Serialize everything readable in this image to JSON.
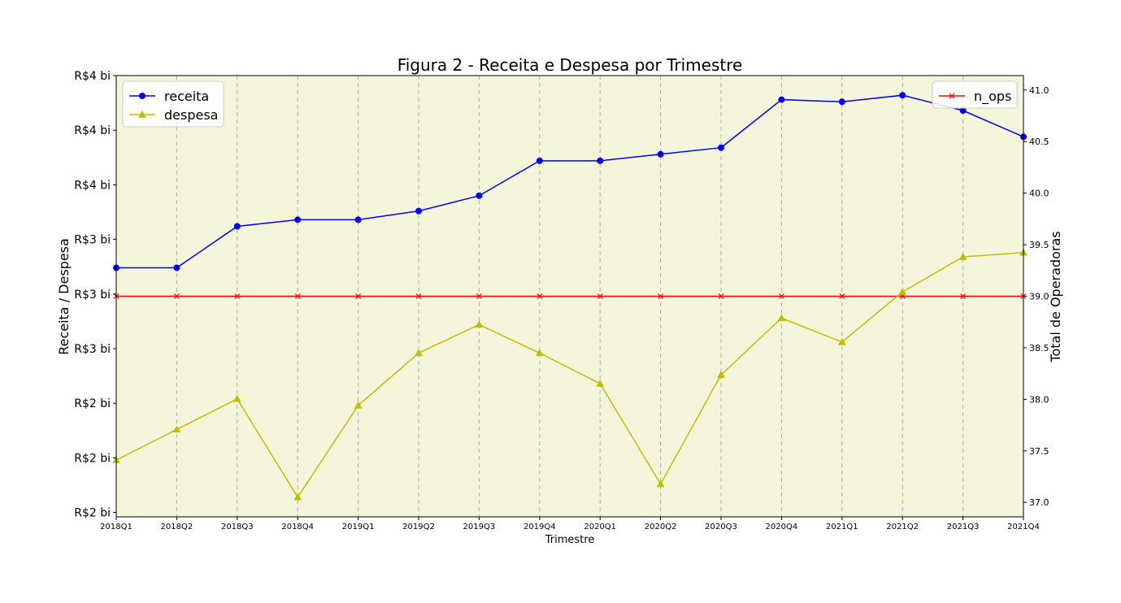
{
  "chart_data": {
    "type": "line",
    "title": "Figura 2 - Receita e Despesa por Trimestre",
    "xlabel": "Trimestre",
    "ylabel": "Receita / Despesa",
    "y2label": "Total de Operadoras",
    "categories": [
      "2018Q1",
      "2018Q2",
      "2018Q3",
      "2018Q4",
      "2019Q1",
      "2019Q2",
      "2019Q3",
      "2019Q4",
      "2020Q1",
      "2020Q2",
      "2020Q3",
      "2020Q4",
      "2021Q1",
      "2021Q2",
      "2021Q3",
      "2021Q4"
    ],
    "y_tick_labels": [
      "R$2 bi",
      "R$2 bi",
      "R$2 bi",
      "R$3 bi",
      "R$3 bi",
      "R$3 bi",
      "R$4 bi",
      "R$4 bi",
      "R$4 bi"
    ],
    "y_ticks": [
      2.0,
      2.25,
      2.5,
      2.75,
      3.0,
      3.25,
      3.5,
      3.75,
      4.0
    ],
    "ylim": [
      1.98,
      4.0
    ],
    "y2_ticks": [
      37.0,
      37.5,
      38.0,
      38.5,
      39.0,
      39.5,
      40.0,
      40.5,
      41.0
    ],
    "y2_tick_labels": [
      "37.0",
      "37.5",
      "38.0",
      "38.5",
      "39.0",
      "39.5",
      "40.0",
      "40.5",
      "41.0"
    ],
    "y2lim": [
      36.86,
      41.14
    ],
    "series": [
      {
        "name": "receita",
        "axis": "left",
        "color": "#0000ff",
        "marker": "circle",
        "values": [
          3.12,
          3.12,
          3.31,
          3.34,
          3.34,
          3.38,
          3.45,
          3.61,
          3.61,
          3.64,
          3.67,
          3.89,
          3.88,
          3.91,
          3.84,
          3.72
        ]
      },
      {
        "name": "despesa",
        "axis": "left",
        "color": "#bfbf00",
        "marker": "triangle",
        "values": [
          2.24,
          2.38,
          2.52,
          2.07,
          2.49,
          2.73,
          2.86,
          2.73,
          2.59,
          2.13,
          2.63,
          2.89,
          2.78,
          3.01,
          3.17,
          3.19
        ]
      },
      {
        "name": "n_ops",
        "axis": "right",
        "color": "#ff0000",
        "marker": "x",
        "values": [
          39,
          39,
          39,
          39,
          39,
          39,
          39,
          39,
          39,
          39,
          39,
          39,
          39,
          39,
          39,
          39
        ]
      }
    ],
    "grid": "vertical dashed",
    "legend_left": "upper-left",
    "legend_right": "upper-right",
    "background": "#f5f5dc"
  }
}
